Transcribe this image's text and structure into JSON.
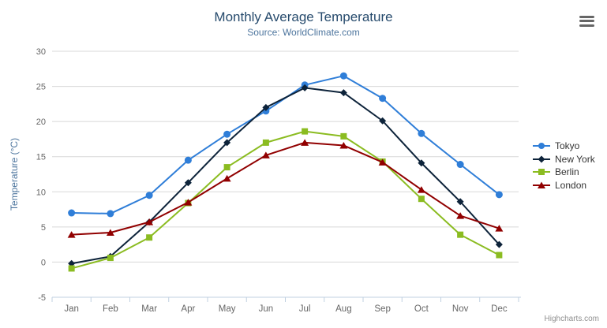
{
  "header": {
    "title": "Monthly Average Temperature",
    "subtitle": "Source: WorldClimate.com"
  },
  "credits": "Highcharts.com",
  "colors": {
    "title": "#274b6d",
    "subtitle": "#4d759e",
    "axis_label": "#666666",
    "grid": "#d8d8d8",
    "axis_line": "#c0d0e0",
    "legend_text": "#333333",
    "credits": "#909090",
    "export_icon": "#666666"
  },
  "chart_data": {
    "type": "line",
    "title": "Monthly Average Temperature",
    "subtitle": "Source: WorldClimate.com",
    "categories": [
      "Jan",
      "Feb",
      "Mar",
      "Apr",
      "May",
      "Jun",
      "Jul",
      "Aug",
      "Sep",
      "Oct",
      "Nov",
      "Dec"
    ],
    "series": [
      {
        "name": "Tokyo",
        "color": "#2f7ed8",
        "marker": "circle",
        "values": [
          7.0,
          6.9,
          9.5,
          14.5,
          18.2,
          21.5,
          25.2,
          26.5,
          23.3,
          18.3,
          13.9,
          9.6
        ]
      },
      {
        "name": "New York",
        "color": "#0d233a",
        "marker": "diamond",
        "values": [
          -0.2,
          0.8,
          5.7,
          11.3,
          17.0,
          22.0,
          24.8,
          24.1,
          20.1,
          14.1,
          8.6,
          2.5
        ]
      },
      {
        "name": "Berlin",
        "color": "#8bbc21",
        "marker": "square",
        "values": [
          -0.9,
          0.6,
          3.5,
          8.4,
          13.5,
          17.0,
          18.6,
          17.9,
          14.3,
          9.0,
          3.9,
          1.0
        ]
      },
      {
        "name": "London",
        "color": "#910000",
        "marker": "triangle",
        "values": [
          3.9,
          4.2,
          5.7,
          8.5,
          11.9,
          15.2,
          17.0,
          16.6,
          14.2,
          10.3,
          6.6,
          4.8
        ]
      }
    ],
    "xlabel": "",
    "ylabel": "Temperature (°C)",
    "ylim": [
      -5,
      30
    ],
    "ytick_interval": 5,
    "grid": true,
    "legend_position": "right"
  }
}
